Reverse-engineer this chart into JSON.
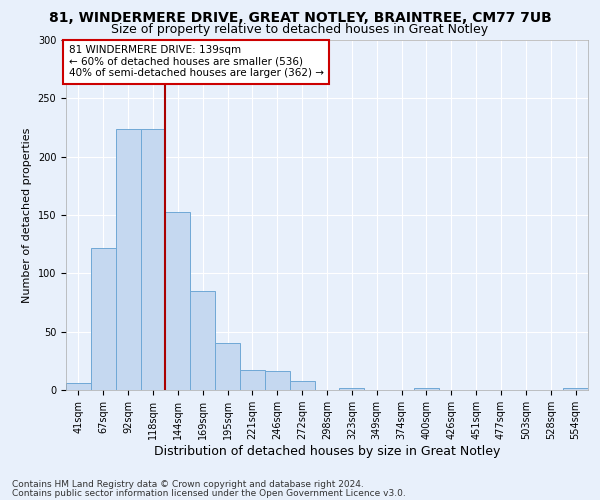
{
  "title1": "81, WINDERMERE DRIVE, GREAT NOTLEY, BRAINTREE, CM77 7UB",
  "title2": "Size of property relative to detached houses in Great Notley",
  "xlabel": "Distribution of detached houses by size in Great Notley",
  "ylabel": "Number of detached properties",
  "categories": [
    "41sqm",
    "67sqm",
    "92sqm",
    "118sqm",
    "144sqm",
    "169sqm",
    "195sqm",
    "221sqm",
    "246sqm",
    "272sqm",
    "298sqm",
    "323sqm",
    "349sqm",
    "374sqm",
    "400sqm",
    "426sqm",
    "451sqm",
    "477sqm",
    "503sqm",
    "528sqm",
    "554sqm"
  ],
  "values": [
    6,
    122,
    224,
    224,
    153,
    85,
    40,
    17,
    16,
    8,
    0,
    2,
    0,
    0,
    2,
    0,
    0,
    0,
    0,
    0,
    2
  ],
  "bar_color": "#c5d8f0",
  "bar_edge_color": "#6fa8d6",
  "bg_color": "#e8f0fb",
  "grid_color": "#ffffff",
  "annotation_text": "81 WINDERMERE DRIVE: 139sqm\n← 60% of detached houses are smaller (536)\n40% of semi-detached houses are larger (362) →",
  "vline_x": 3.5,
  "vline_color": "#aa0000",
  "annotation_box_color": "#ffffff",
  "annotation_box_edge": "#cc0000",
  "footnote1": "Contains HM Land Registry data © Crown copyright and database right 2024.",
  "footnote2": "Contains public sector information licensed under the Open Government Licence v3.0.",
  "ylim": [
    0,
    300
  ],
  "title1_fontsize": 10,
  "title2_fontsize": 9,
  "xlabel_fontsize": 9,
  "ylabel_fontsize": 8,
  "tick_fontsize": 7,
  "annot_fontsize": 7.5,
  "footnote_fontsize": 6.5
}
